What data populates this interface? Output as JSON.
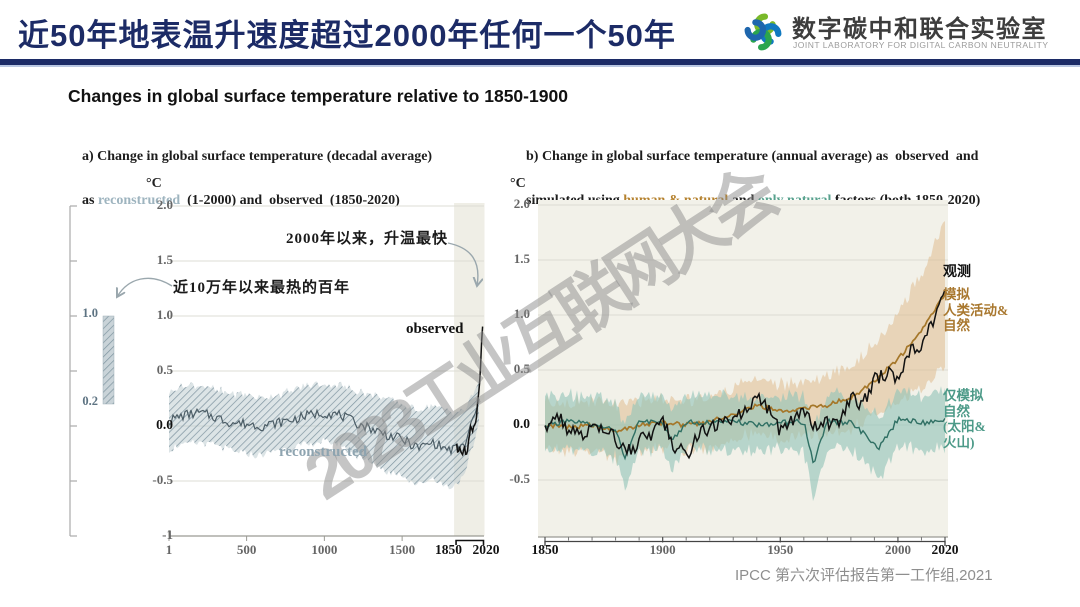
{
  "header": {
    "title": "近50年地表温升速度超过2000年任何一个50年",
    "logo": {
      "cn": "数字碳中和联合实验室",
      "en": "JOINT LABORATORY FOR DIGITAL CARBON NEUTRALITY"
    }
  },
  "main_title": "Changes in global surface temperature relative to 1850-1900",
  "panel_a": {
    "caption_line1": "a) Change in global surface temperature (decadal average)",
    "caption_line2_prefix": "as ",
    "caption_reconstructed": "reconstructed",
    "caption_line2_suffix": "  (1-2000) and  observed  (1850-2020)",
    "unit": "°C",
    "annotation_fastest": "2000年以来，升温最快",
    "annotation_hottest": "近10万年以来最热的百年",
    "label_observed": "observed",
    "label_reconstructed": "reconstructed",
    "side_scale": {
      "top_label": "1.0",
      "bottom_label": "0.2"
    }
  },
  "panel_b": {
    "caption_line1": "b) Change in global surface temperature (annual average) as  observed  and",
    "caption_line2_prefix": "simulated using ",
    "caption_human_natural": "human & natural",
    "caption_mid": " and ",
    "caption_only_natural": "only natural",
    "caption_suffix": " factors (both 1850-2020)",
    "unit": "°C",
    "label_observed": "观测",
    "label_simulated": "模拟\n人类活动&\n自然",
    "label_natural": "仅模拟\n自然\n(太阳&\n火山)"
  },
  "watermark": "2023工业互联网大会",
  "citation": "IPCC 第六次评估报告第一工作组,2021",
  "colors": {
    "accent_navy": "#1c2b66",
    "highlight_band": "#efeee6",
    "panel_b_bg": "#f2f1e9",
    "grid": "#dcdcd4",
    "axis": "#9a9a94",
    "reconstructed_line": "#4c5d66",
    "reconstructed_band": "#b7c6cd",
    "observed": "#111111",
    "human_natural_line": "#a5772a",
    "human_natural_band": "#ddb887",
    "natural_line": "#2f6f63",
    "natural_band": "#8fc3b8",
    "watermark": "#8c8c8c",
    "arrow": "#9aa7ad",
    "logo_green": "#79b929",
    "logo_blue": "#1079c0",
    "logo_green2": "#2ba54e",
    "logo_blue2": "#1e66ad"
  },
  "chart_data": [
    {
      "id": "a",
      "type": "line",
      "title": "Change in global surface temperature (decadal average) as reconstructed (1-2000) and observed (1850-2020)",
      "ylabel": "°C",
      "xlim": [
        1,
        2020
      ],
      "ylim": [
        -1,
        2
      ],
      "grid": true,
      "yticks": [
        {
          "v": 2.0,
          "label": "2.0"
        },
        {
          "v": 1.5,
          "label": "1.5"
        },
        {
          "v": 1.0,
          "label": "1.0"
        },
        {
          "v": 0.5,
          "label": "0.5"
        },
        {
          "v": 0.0,
          "label": "0.0",
          "bold": true
        },
        {
          "v": -0.5,
          "label": "-0.5"
        },
        {
          "v": -1,
          "label": "-1"
        }
      ],
      "xticks": [
        {
          "v": 1,
          "label": "1"
        },
        {
          "v": 500,
          "label": "500"
        },
        {
          "v": 1000,
          "label": "1000"
        },
        {
          "v": 1500,
          "label": "1500"
        },
        {
          "v": 1850,
          "label": "1850",
          "bold": true
        },
        {
          "v": 2020,
          "label": "2020",
          "bold": true
        }
      ],
      "highlight_span": [
        1850,
        2020
      ],
      "side_scale_bar": {
        "range": [
          0.2,
          1.0
        ],
        "tick_values": [
          2.0,
          1.5,
          1.0,
          0.5,
          0.0,
          -0.5,
          -1
        ]
      },
      "series": [
        {
          "name": "reconstructed",
          "x": [
            1,
            100,
            200,
            300,
            400,
            500,
            600,
            700,
            800,
            900,
            1000,
            1100,
            1200,
            1300,
            1400,
            1500,
            1600,
            1700,
            1800,
            1900,
            2000
          ],
          "y": [
            0.05,
            0.1,
            0.12,
            0.08,
            0.03,
            0.02,
            0.0,
            0.03,
            0.06,
            0.1,
            0.12,
            0.1,
            0.03,
            -0.02,
            -0.08,
            -0.12,
            -0.2,
            -0.15,
            -0.22,
            -0.18,
            0.25
          ],
          "band_halfwidth": [
            0.26,
            0.27,
            0.26,
            0.25,
            0.26,
            0.27,
            0.26,
            0.25,
            0.26,
            0.27,
            0.26,
            0.27,
            0.29,
            0.31,
            0.33,
            0.32,
            0.34,
            0.33,
            0.35,
            0.3,
            0.18
          ]
        },
        {
          "name": "observed",
          "x": [
            1850,
            1860,
            1870,
            1880,
            1890,
            1900,
            1910,
            1920,
            1930,
            1940,
            1950,
            1960,
            1970,
            1980,
            1990,
            2000,
            2010,
            2020
          ],
          "y": [
            -0.18,
            -0.22,
            -0.2,
            -0.28,
            -0.26,
            -0.2,
            -0.28,
            -0.22,
            -0.12,
            -0.02,
            -0.06,
            -0.02,
            0.0,
            0.12,
            0.3,
            0.45,
            0.72,
            1.0
          ]
        }
      ]
    },
    {
      "id": "b",
      "type": "line",
      "title": "Change in global surface temperature (annual average) as observed and simulated using human & natural and only natural factors (both 1850-2020)",
      "ylabel": "°C",
      "xlim": [
        1850,
        2020
      ],
      "ylim": [
        -1,
        2
      ],
      "grid": true,
      "yticks": [
        {
          "v": 2.0,
          "label": "2.0"
        },
        {
          "v": 1.5,
          "label": "1.5"
        },
        {
          "v": 1.0,
          "label": "1.0"
        },
        {
          "v": 0.5,
          "label": "0.5"
        },
        {
          "v": 0.0,
          "label": "0.0",
          "bold": true
        },
        {
          "v": -0.5,
          "label": "-0.5"
        }
      ],
      "xticks": [
        {
          "v": 1850,
          "label": "1850",
          "bold": true
        },
        {
          "v": 1900,
          "label": "1900"
        },
        {
          "v": 1950,
          "label": "1950"
        },
        {
          "v": 2000,
          "label": "2000"
        },
        {
          "v": 2020,
          "label": "2020",
          "bold": true
        }
      ],
      "minor_xtick_step": 10,
      "series": [
        {
          "name": "human_natural_simulated",
          "x": [
            1850,
            1860,
            1870,
            1880,
            1890,
            1900,
            1910,
            1920,
            1930,
            1940,
            1950,
            1960,
            1970,
            1980,
            1990,
            2000,
            2010,
            2020
          ],
          "y": [
            0.0,
            -0.02,
            0.0,
            -0.06,
            0.0,
            0.02,
            0.0,
            0.03,
            0.1,
            0.18,
            0.12,
            0.15,
            0.18,
            0.25,
            0.4,
            0.6,
            0.85,
            1.2
          ],
          "band_halfwidth": [
            0.22,
            0.22,
            0.23,
            0.24,
            0.22,
            0.22,
            0.23,
            0.23,
            0.24,
            0.25,
            0.25,
            0.25,
            0.26,
            0.28,
            0.33,
            0.4,
            0.52,
            0.65
          ]
        },
        {
          "name": "natural_only_simulated",
          "x": [
            1850,
            1860,
            1870,
            1880,
            1884,
            1890,
            1900,
            1904,
            1910,
            1920,
            1930,
            1940,
            1950,
            1960,
            1964,
            1970,
            1980,
            1992,
            2000,
            2010,
            2020
          ],
          "y": [
            0.0,
            0.03,
            0.0,
            -0.04,
            -0.3,
            0.03,
            0.02,
            -0.15,
            0.03,
            0.02,
            0.03,
            0.0,
            0.02,
            0.03,
            -0.35,
            0.03,
            0.02,
            -0.2,
            0.05,
            0.02,
            0.05
          ],
          "band_halfwidth": [
            0.24,
            0.25,
            0.24,
            0.25,
            0.3,
            0.25,
            0.24,
            0.27,
            0.25,
            0.24,
            0.25,
            0.24,
            0.25,
            0.25,
            0.32,
            0.25,
            0.24,
            0.28,
            0.25,
            0.25,
            0.26
          ]
        },
        {
          "name": "observed",
          "x": [
            1850,
            1855,
            1860,
            1865,
            1870,
            1875,
            1880,
            1885,
            1890,
            1895,
            1900,
            1905,
            1910,
            1915,
            1920,
            1925,
            1930,
            1935,
            1940,
            1945,
            1950,
            1955,
            1960,
            1965,
            1970,
            1975,
            1980,
            1985,
            1990,
            1995,
            2000,
            2005,
            2010,
            2015,
            2020
          ],
          "y": [
            0.0,
            0.08,
            -0.05,
            -0.12,
            0.02,
            -0.08,
            -0.12,
            -0.25,
            -0.15,
            -0.1,
            0.02,
            -0.18,
            -0.28,
            -0.08,
            -0.05,
            0.02,
            0.05,
            0.12,
            0.25,
            0.15,
            -0.05,
            0.05,
            0.1,
            -0.02,
            0.03,
            0.0,
            0.25,
            0.18,
            0.4,
            0.48,
            0.42,
            0.65,
            0.75,
            0.95,
            1.25
          ]
        }
      ]
    }
  ]
}
